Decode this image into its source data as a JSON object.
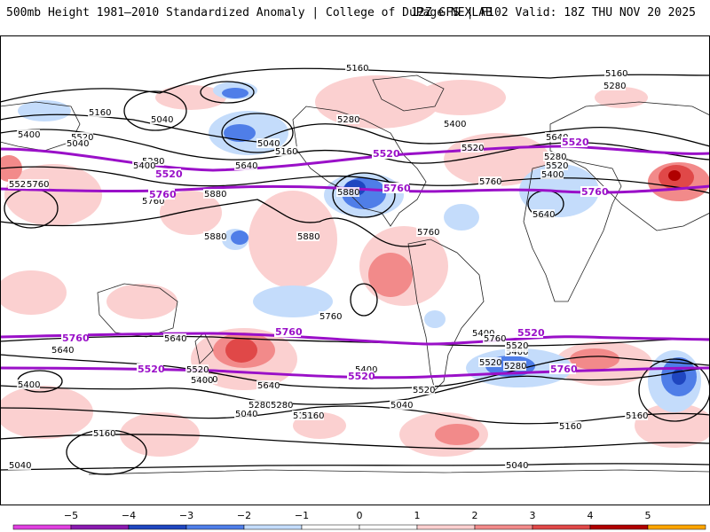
{
  "header": {
    "title_left": "500mb Height 1981–2010 Standardized Anomaly | College of DuPage NEXLAB",
    "title_right": "12Z GFS | F102 Valid: 18Z THU NOV 20 2025"
  },
  "colors": {
    "neg5": "#e040e0",
    "neg4": "#8a1ab0",
    "neg3": "#1f46c0",
    "neg2": "#4f7ee8",
    "neg1": "#c4dcfb",
    "zero": "#ffffff",
    "pos1": "#fbd0d0",
    "pos2": "#f28a8a",
    "pos3": "#e04848",
    "pos4": "#b00000",
    "pos5": "#ffa500",
    "accent_line": "#9a10c8"
  },
  "contour_labels": [
    {
      "text": "5160"
    },
    {
      "text": "5160"
    },
    {
      "text": "5280"
    },
    {
      "text": "5160"
    },
    {
      "text": "5040"
    },
    {
      "text": "5040"
    },
    {
      "text": "5160"
    },
    {
      "text": "5400"
    },
    {
      "text": "5520"
    },
    {
      "text": "5280"
    },
    {
      "text": "5280"
    },
    {
      "text": "5400"
    },
    {
      "text": "5520"
    },
    {
      "text": "5640"
    },
    {
      "text": "5760"
    },
    {
      "text": "5880"
    },
    {
      "text": "5880"
    },
    {
      "text": "5880"
    },
    {
      "text": "5880"
    },
    {
      "text": "5760"
    },
    {
      "text": "5520"
    },
    {
      "text": "5400"
    },
    {
      "text": "5280"
    },
    {
      "text": "5640"
    },
    {
      "text": "5400"
    },
    {
      "text": "5520"
    },
    {
      "text": "5640"
    },
    {
      "text": "5760"
    },
    {
      "text": "5760"
    },
    {
      "text": "5640"
    },
    {
      "text": "5760"
    },
    {
      "text": "5640"
    },
    {
      "text": "5400"
    },
    {
      "text": "5280"
    },
    {
      "text": "5520"
    },
    {
      "text": "5400"
    },
    {
      "text": "5520"
    },
    {
      "text": "5640"
    },
    {
      "text": "5280"
    },
    {
      "text": "5160"
    },
    {
      "text": "5040"
    },
    {
      "text": "5160"
    },
    {
      "text": "5040"
    },
    {
      "text": "5160"
    },
    {
      "text": "5040"
    },
    {
      "text": "5040"
    },
    {
      "text": "5160"
    },
    {
      "text": "5160"
    },
    {
      "text": "5520"
    },
    {
      "text": "5400"
    },
    {
      "text": "5280"
    },
    {
      "text": "5640"
    },
    {
      "text": "5760"
    },
    {
      "text": "5040"
    },
    {
      "text": "5400"
    },
    {
      "text": "5400"
    },
    {
      "text": "5520"
    },
    {
      "text": "5400"
    }
  ],
  "purple_labels": [
    {
      "text": "5520"
    },
    {
      "text": "5520"
    },
    {
      "text": "5520"
    },
    {
      "text": "5760"
    },
    {
      "text": "5760"
    },
    {
      "text": "5760"
    },
    {
      "text": "5760"
    },
    {
      "text": "5760"
    },
    {
      "text": "5520"
    },
    {
      "text": "5520"
    },
    {
      "text": "5520"
    },
    {
      "text": "5760"
    }
  ],
  "colorbar": {
    "ticks": [
      "−5",
      "−4",
      "−3",
      "−2",
      "−1",
      "0",
      "1",
      "2",
      "3",
      "4",
      "5"
    ]
  }
}
